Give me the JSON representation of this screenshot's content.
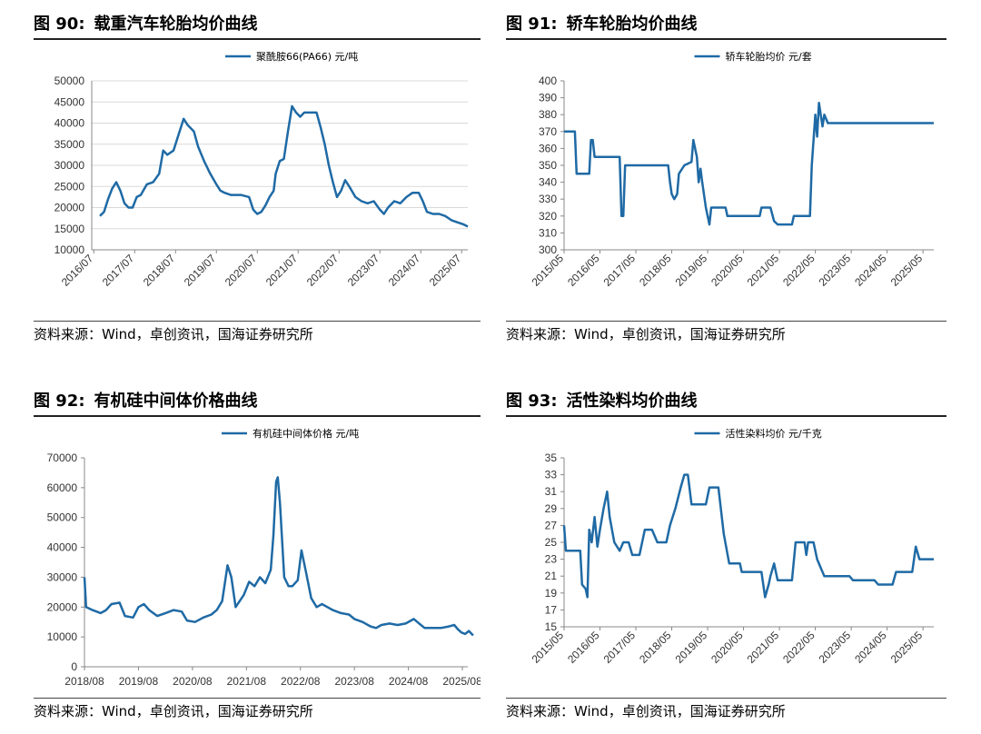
{
  "source_label": "资料来源：Wind，卓创资讯，国海证券研究所",
  "panels": [
    {
      "fig_no": "图 90:",
      "fig_title": "载重汽车轮胎均价曲线"
    },
    {
      "fig_no": "图 91:",
      "fig_title": "轿车轮胎均价曲线"
    },
    {
      "fig_no": "图 92:",
      "fig_title": "有机硅中间体价格曲线"
    },
    {
      "fig_no": "图 93:",
      "fig_title": "活性染料均价曲线"
    }
  ],
  "chart_data": [
    {
      "type": "line",
      "title": "",
      "series": [
        {
          "name": "聚酰胺66(PA66)  元/吨",
          "color": "#1F6AA5"
        }
      ],
      "x_kind": "year",
      "x_range": [
        2016.45,
        2025.65
      ],
      "x_ticks": [
        "2016/07",
        "2017/07",
        "2018/07",
        "2019/07",
        "2020/07",
        "2021/07",
        "2022/07",
        "2023/07",
        "2024/07",
        "2025/07"
      ],
      "x_tick_pos": [
        2016.5,
        2017.5,
        2018.5,
        2019.5,
        2020.5,
        2021.5,
        2022.5,
        2023.5,
        2024.5,
        2025.5
      ],
      "tick_rotate": true,
      "ylim": [
        10000,
        50000
      ],
      "y_ticks": [
        10000,
        15000,
        20000,
        25000,
        30000,
        35000,
        40000,
        45000,
        50000
      ],
      "grid": "horizontal",
      "legend_position": "top",
      "points": [
        [
          2016.65,
          18000
        ],
        [
          2016.75,
          19000
        ],
        [
          2016.85,
          22000
        ],
        [
          2016.95,
          24500
        ],
        [
          2017.05,
          26000
        ],
        [
          2017.15,
          24000
        ],
        [
          2017.25,
          21000
        ],
        [
          2017.35,
          20000
        ],
        [
          2017.45,
          20000
        ],
        [
          2017.55,
          22500
        ],
        [
          2017.65,
          23000
        ],
        [
          2017.8,
          25500
        ],
        [
          2017.95,
          26000
        ],
        [
          2018.1,
          28000
        ],
        [
          2018.2,
          33500
        ],
        [
          2018.3,
          32500
        ],
        [
          2018.45,
          33500
        ],
        [
          2018.6,
          38000
        ],
        [
          2018.7,
          41000
        ],
        [
          2018.8,
          39500
        ],
        [
          2018.95,
          38000
        ],
        [
          2019.05,
          34500
        ],
        [
          2019.2,
          31000
        ],
        [
          2019.35,
          28000
        ],
        [
          2019.5,
          25500
        ],
        [
          2019.6,
          24000
        ],
        [
          2019.7,
          23500
        ],
        [
          2019.85,
          23000
        ],
        [
          2020.1,
          23000
        ],
        [
          2020.3,
          22500
        ],
        [
          2020.4,
          19500
        ],
        [
          2020.5,
          18500
        ],
        [
          2020.6,
          19000
        ],
        [
          2020.7,
          20500
        ],
        [
          2020.8,
          22500
        ],
        [
          2020.9,
          24000
        ],
        [
          2020.95,
          28000
        ],
        [
          2021.05,
          31000
        ],
        [
          2021.15,
          31500
        ],
        [
          2021.25,
          38000
        ],
        [
          2021.35,
          44000
        ],
        [
          2021.45,
          42500
        ],
        [
          2021.55,
          41500
        ],
        [
          2021.65,
          42500
        ],
        [
          2021.8,
          42500
        ],
        [
          2021.95,
          42500
        ],
        [
          2022.05,
          39000
        ],
        [
          2022.15,
          35000
        ],
        [
          2022.25,
          30000
        ],
        [
          2022.35,
          26000
        ],
        [
          2022.45,
          22500
        ],
        [
          2022.55,
          24000
        ],
        [
          2022.65,
          26500
        ],
        [
          2022.75,
          25000
        ],
        [
          2022.9,
          22500
        ],
        [
          2023.05,
          21500
        ],
        [
          2023.2,
          21000
        ],
        [
          2023.35,
          21500
        ],
        [
          2023.5,
          19500
        ],
        [
          2023.6,
          18500
        ],
        [
          2023.7,
          20000
        ],
        [
          2023.85,
          21500
        ],
        [
          2024.0,
          21000
        ],
        [
          2024.15,
          22500
        ],
        [
          2024.3,
          23500
        ],
        [
          2024.45,
          23500
        ],
        [
          2024.55,
          21500
        ],
        [
          2024.65,
          19000
        ],
        [
          2024.8,
          18500
        ],
        [
          2024.95,
          18500
        ],
        [
          2025.1,
          18000
        ],
        [
          2025.25,
          17000
        ],
        [
          2025.4,
          16500
        ],
        [
          2025.55,
          16000
        ],
        [
          2025.65,
          15500
        ]
      ]
    },
    {
      "type": "line",
      "title": "",
      "series": [
        {
          "name": "轿车轮胎均价  元/套",
          "color": "#1F6AA5"
        }
      ],
      "x_kind": "year",
      "x_range": [
        2015.35,
        2025.65
      ],
      "x_ticks": [
        "2015/05",
        "2016/05",
        "2017/05",
        "2018/05",
        "2019/05",
        "2020/05",
        "2021/05",
        "2022/05",
        "2023/05",
        "2024/05",
        "2025/05"
      ],
      "x_tick_pos": [
        2015.35,
        2016.35,
        2017.35,
        2018.35,
        2019.35,
        2020.35,
        2021.35,
        2022.35,
        2023.35,
        2024.35,
        2025.35
      ],
      "tick_rotate": true,
      "ylim": [
        300,
        400
      ],
      "y_ticks": [
        300,
        310,
        320,
        330,
        340,
        350,
        360,
        370,
        380,
        390,
        400
      ],
      "grid": "none",
      "legend_position": "top",
      "points": [
        [
          2015.35,
          370
        ],
        [
          2015.65,
          370
        ],
        [
          2015.7,
          345
        ],
        [
          2016.05,
          345
        ],
        [
          2016.1,
          365
        ],
        [
          2016.15,
          365
        ],
        [
          2016.2,
          355
        ],
        [
          2016.9,
          355
        ],
        [
          2016.95,
          320
        ],
        [
          2017.0,
          320
        ],
        [
          2017.05,
          350
        ],
        [
          2018.25,
          350
        ],
        [
          2018.3,
          340
        ],
        [
          2018.35,
          333
        ],
        [
          2018.42,
          330
        ],
        [
          2018.5,
          333
        ],
        [
          2018.55,
          345
        ],
        [
          2018.7,
          350
        ],
        [
          2018.9,
          352
        ],
        [
          2018.95,
          365
        ],
        [
          2019.05,
          355
        ],
        [
          2019.1,
          340
        ],
        [
          2019.15,
          348
        ],
        [
          2019.2,
          340
        ],
        [
          2019.3,
          325
        ],
        [
          2019.4,
          315
        ],
        [
          2019.45,
          325
        ],
        [
          2019.85,
          325
        ],
        [
          2019.9,
          320
        ],
        [
          2020.8,
          320
        ],
        [
          2020.85,
          325
        ],
        [
          2021.1,
          325
        ],
        [
          2021.2,
          317
        ],
        [
          2021.3,
          315
        ],
        [
          2021.7,
          315
        ],
        [
          2021.75,
          320
        ],
        [
          2022.2,
          320
        ],
        [
          2022.25,
          350
        ],
        [
          2022.35,
          380
        ],
        [
          2022.4,
          367
        ],
        [
          2022.45,
          387
        ],
        [
          2022.55,
          373
        ],
        [
          2022.6,
          380
        ],
        [
          2022.7,
          375
        ],
        [
          2025.65,
          375
        ]
      ]
    },
    {
      "type": "line",
      "title": "",
      "series": [
        {
          "name": "有机硅中间体价格  元/吨",
          "color": "#1F6AA5"
        }
      ],
      "x_kind": "year",
      "x_range": [
        2018.6,
        2025.7
      ],
      "x_ticks": [
        "2018/08",
        "2019/08",
        "2020/08",
        "2021/08",
        "2022/08",
        "2023/08",
        "2024/08",
        "2025/08"
      ],
      "x_tick_pos": [
        2018.6,
        2019.6,
        2020.6,
        2021.6,
        2022.6,
        2023.6,
        2024.6,
        2025.6
      ],
      "tick_rotate": false,
      "ylim": [
        0,
        70000
      ],
      "y_ticks": [
        0,
        10000,
        20000,
        30000,
        40000,
        50000,
        60000,
        70000
      ],
      "grid": "none",
      "legend_position": "top",
      "points": [
        [
          2018.6,
          30000
        ],
        [
          2018.63,
          20000
        ],
        [
          2018.75,
          19000
        ],
        [
          2018.9,
          18000
        ],
        [
          2019.0,
          19000
        ],
        [
          2019.1,
          21000
        ],
        [
          2019.25,
          21500
        ],
        [
          2019.35,
          17000
        ],
        [
          2019.5,
          16500
        ],
        [
          2019.6,
          20000
        ],
        [
          2019.7,
          21000
        ],
        [
          2019.8,
          19000
        ],
        [
          2019.95,
          17000
        ],
        [
          2020.1,
          18000
        ],
        [
          2020.25,
          19000
        ],
        [
          2020.4,
          18500
        ],
        [
          2020.5,
          15500
        ],
        [
          2020.65,
          15000
        ],
        [
          2020.8,
          16500
        ],
        [
          2020.95,
          17500
        ],
        [
          2021.05,
          19000
        ],
        [
          2021.15,
          22000
        ],
        [
          2021.25,
          34000
        ],
        [
          2021.32,
          30000
        ],
        [
          2021.4,
          20000
        ],
        [
          2021.55,
          24000
        ],
        [
          2021.65,
          28500
        ],
        [
          2021.75,
          27000
        ],
        [
          2021.85,
          30000
        ],
        [
          2021.95,
          28000
        ],
        [
          2022.05,
          32500
        ],
        [
          2022.1,
          44000
        ],
        [
          2022.15,
          62000
        ],
        [
          2022.18,
          63500
        ],
        [
          2022.22,
          55000
        ],
        [
          2022.3,
          30000
        ],
        [
          2022.38,
          27000
        ],
        [
          2022.45,
          27000
        ],
        [
          2022.55,
          29000
        ],
        [
          2022.62,
          39000
        ],
        [
          2022.7,
          32000
        ],
        [
          2022.8,
          23000
        ],
        [
          2022.9,
          20000
        ],
        [
          2023.0,
          21000
        ],
        [
          2023.1,
          20000
        ],
        [
          2023.2,
          19000
        ],
        [
          2023.35,
          18000
        ],
        [
          2023.5,
          17500
        ],
        [
          2023.6,
          16000
        ],
        [
          2023.75,
          15000
        ],
        [
          2023.9,
          13500
        ],
        [
          2024.0,
          13000
        ],
        [
          2024.1,
          14000
        ],
        [
          2024.25,
          14500
        ],
        [
          2024.4,
          14000
        ],
        [
          2024.55,
          14500
        ],
        [
          2024.7,
          16000
        ],
        [
          2024.8,
          14500
        ],
        [
          2024.9,
          13000
        ],
        [
          2025.05,
          13000
        ],
        [
          2025.2,
          13000
        ],
        [
          2025.35,
          13500
        ],
        [
          2025.45,
          14000
        ],
        [
          2025.52,
          12500
        ],
        [
          2025.58,
          11500
        ],
        [
          2025.65,
          11000
        ],
        [
          2025.72,
          12000
        ],
        [
          2025.8,
          10500
        ]
      ]
    },
    {
      "type": "line",
      "title": "",
      "series": [
        {
          "name": "活性染料均价  元/千克",
          "color": "#1F6AA5"
        }
      ],
      "x_kind": "year",
      "x_range": [
        2015.35,
        2025.65
      ],
      "x_ticks": [
        "2015/05",
        "2016/05",
        "2017/05",
        "2018/05",
        "2019/05",
        "2020/05",
        "2021/05",
        "2022/05",
        "2023/05",
        "2024/05",
        "2025/05"
      ],
      "x_tick_pos": [
        2015.35,
        2016.35,
        2017.35,
        2018.35,
        2019.35,
        2020.35,
        2021.35,
        2022.35,
        2023.35,
        2024.35,
        2025.35
      ],
      "tick_rotate": true,
      "ylim": [
        15,
        35
      ],
      "y_ticks": [
        15,
        17,
        19,
        21,
        23,
        25,
        27,
        29,
        31,
        33,
        35
      ],
      "grid": "none",
      "legend_position": "top",
      "points": [
        [
          2015.35,
          27
        ],
        [
          2015.4,
          24
        ],
        [
          2015.8,
          24
        ],
        [
          2015.85,
          20
        ],
        [
          2015.95,
          19.5
        ],
        [
          2016.0,
          18.5
        ],
        [
          2016.05,
          26.5
        ],
        [
          2016.12,
          25
        ],
        [
          2016.2,
          28
        ],
        [
          2016.28,
          24.5
        ],
        [
          2016.35,
          26.5
        ],
        [
          2016.45,
          29
        ],
        [
          2016.55,
          31
        ],
        [
          2016.62,
          28
        ],
        [
          2016.75,
          25
        ],
        [
          2016.9,
          24
        ],
        [
          2017.0,
          25
        ],
        [
          2017.15,
          25
        ],
        [
          2017.25,
          23.5
        ],
        [
          2017.45,
          23.5
        ],
        [
          2017.6,
          26.5
        ],
        [
          2017.8,
          26.5
        ],
        [
          2017.95,
          25
        ],
        [
          2018.2,
          25
        ],
        [
          2018.3,
          27
        ],
        [
          2018.45,
          29
        ],
        [
          2018.6,
          31.5
        ],
        [
          2018.7,
          33
        ],
        [
          2018.8,
          33
        ],
        [
          2018.9,
          29.5
        ],
        [
          2019.3,
          29.5
        ],
        [
          2019.4,
          31.5
        ],
        [
          2019.65,
          31.5
        ],
        [
          2019.8,
          26
        ],
        [
          2019.95,
          22.5
        ],
        [
          2020.25,
          22.5
        ],
        [
          2020.3,
          21.5
        ],
        [
          2020.85,
          21.5
        ],
        [
          2020.95,
          18.5
        ],
        [
          2021.05,
          20
        ],
        [
          2021.1,
          21
        ],
        [
          2021.2,
          22.5
        ],
        [
          2021.3,
          20.5
        ],
        [
          2021.7,
          20.5
        ],
        [
          2021.8,
          25
        ],
        [
          2022.05,
          25
        ],
        [
          2022.1,
          23.5
        ],
        [
          2022.15,
          25
        ],
        [
          2022.3,
          25
        ],
        [
          2022.4,
          23
        ],
        [
          2022.5,
          22
        ],
        [
          2022.6,
          21
        ],
        [
          2023.3,
          21
        ],
        [
          2023.4,
          20.5
        ],
        [
          2024.0,
          20.5
        ],
        [
          2024.1,
          20
        ],
        [
          2024.5,
          20
        ],
        [
          2024.6,
          21.5
        ],
        [
          2025.05,
          21.5
        ],
        [
          2025.15,
          24.5
        ],
        [
          2025.25,
          23
        ],
        [
          2025.35,
          23
        ],
        [
          2025.65,
          23
        ]
      ]
    }
  ]
}
